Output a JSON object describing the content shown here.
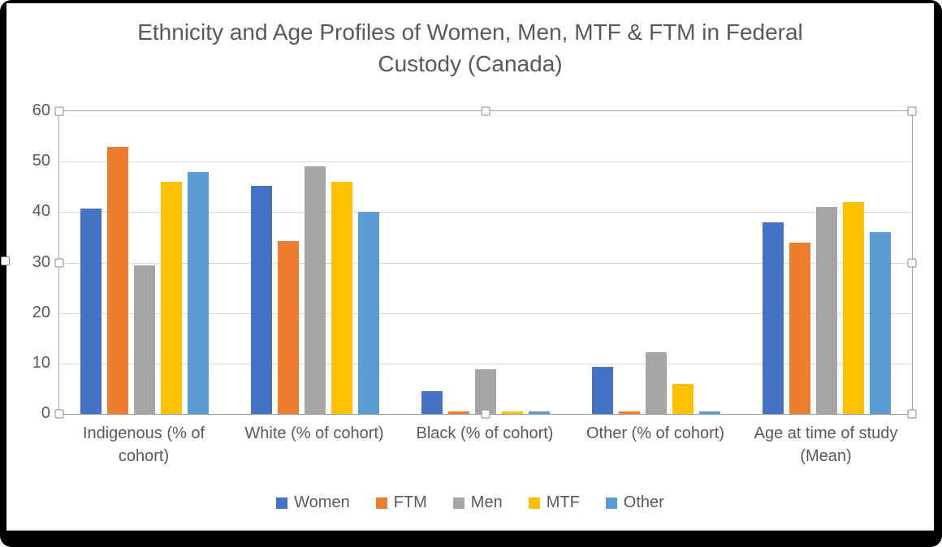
{
  "chart_data": {
    "type": "bar",
    "title": "Ethnicity and Age Profiles of Women, Men, MTF & FTM in Federal Custody (Canada)",
    "categories": [
      "Indigenous (% of cohort)",
      "White (% of cohort)",
      "Black (% of cohort)",
      "Other (% of cohort)",
      "Age at time of study (Mean)"
    ],
    "series": [
      {
        "name": "Women",
        "color": "#4472C4",
        "values": [
          40.7,
          45.2,
          4.5,
          9.3,
          38
        ]
      },
      {
        "name": "FTM",
        "color": "#ED7D31",
        "values": [
          53,
          34.3,
          0.5,
          0.5,
          34
        ]
      },
      {
        "name": "Men",
        "color": "#A5A5A5",
        "values": [
          29.5,
          49,
          8.8,
          12.2,
          41
        ]
      },
      {
        "name": "MTF",
        "color": "#FFC000",
        "values": [
          46,
          46,
          0.5,
          6,
          42
        ]
      },
      {
        "name": "Other",
        "color": "#5B9BD5",
        "values": [
          48,
          40,
          0.5,
          0.5,
          36
        ]
      }
    ],
    "xlabel": "",
    "ylabel": "",
    "ylim": [
      0,
      60
    ],
    "yticks": [
      0,
      10,
      20,
      30,
      40,
      50,
      60
    ],
    "grid": true,
    "legend_position": "bottom"
  },
  "colors": {
    "text": "#595959",
    "gridline": "#D9D9D9",
    "plot_border": "#A6A6A6",
    "axis_line": "#9A9A9A",
    "frame_background": "#000000",
    "canvas_background": "#FFFFFF"
  }
}
